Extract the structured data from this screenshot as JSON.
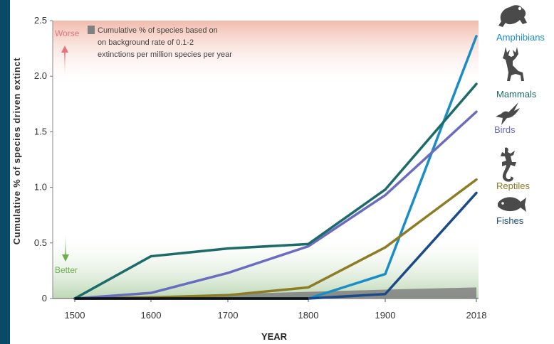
{
  "chart_data": {
    "type": "line",
    "title": "",
    "xlabel": "YEAR",
    "ylabel": "Cumulative % of species driven extinct",
    "categories": [
      "1500",
      "1600",
      "1700",
      "1800",
      "1900",
      "2018"
    ],
    "y_ticks": [
      "0",
      "0.5",
      "1.0",
      "1.5",
      "2.0",
      "2.5"
    ],
    "ylim": [
      0,
      2.5
    ],
    "series": [
      {
        "name": "Amphibians",
        "color": "#1a8ec4",
        "values": [
          0,
          0,
          0,
          0,
          0.22,
          2.36
        ]
      },
      {
        "name": "Mammals",
        "color": "#1d6b68",
        "values": [
          0,
          0.38,
          0.45,
          0.49,
          0.98,
          1.93
        ]
      },
      {
        "name": "Birds",
        "color": "#6a6cbf",
        "values": [
          0,
          0.05,
          0.23,
          0.47,
          0.93,
          1.68
        ]
      },
      {
        "name": "Reptiles",
        "color": "#8c7c25",
        "values": [
          0,
          0.01,
          0.03,
          0.1,
          0.46,
          1.07
        ]
      },
      {
        "name": "Fishes",
        "color": "#1a4a87",
        "values": [
          0,
          0,
          0,
          0,
          0.04,
          0.95
        ]
      }
    ],
    "background_band": {
      "label": "Cumulative % of species based on on background rate of 0.1-2 extinctions per million species per year",
      "label_lines": [
        "Cumulative % of species based on",
        "on background rate of 0.1-2",
        "extinctions per million species per year"
      ],
      "color": "#808080",
      "values": [
        0,
        0.02,
        0.04,
        0.06,
        0.08,
        0.1
      ]
    },
    "zones": {
      "worse": {
        "label": "Worse",
        "color": "#e8737a"
      },
      "better": {
        "label": "Better",
        "color": "#6ab04c"
      }
    },
    "grid": false,
    "legend": "right"
  },
  "icons": {
    "Amphibians": "frog-icon",
    "Mammals": "deer-icon",
    "Birds": "hummingbird-icon",
    "Reptiles": "lizard-icon",
    "Fishes": "fish-icon"
  }
}
